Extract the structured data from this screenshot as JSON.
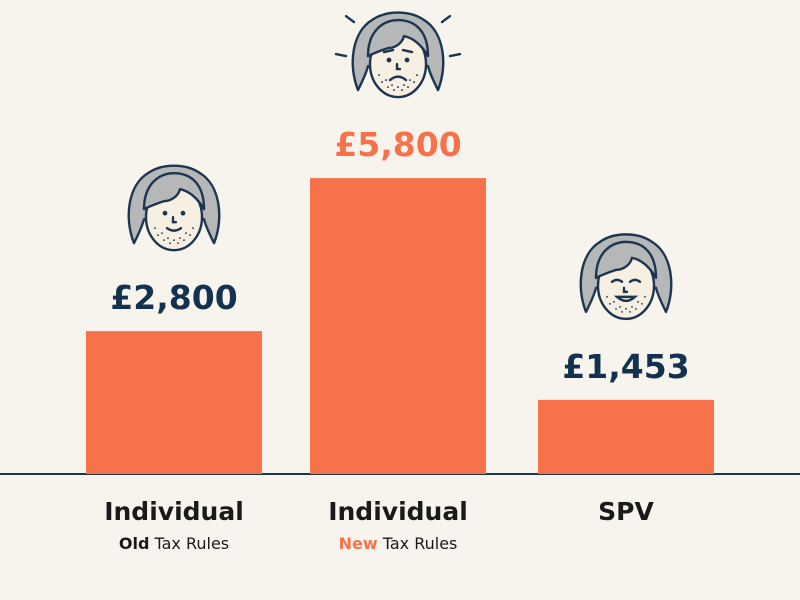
{
  "colors": {
    "background": "#f7f4ee",
    "bar": "#f7724a",
    "value_text": "#13324f",
    "highlight": "#f7724a",
    "axis": "#1d3650"
  },
  "chart_data": {
    "type": "bar",
    "categories": [
      "Individual",
      "Individual",
      "SPV"
    ],
    "values": [
      2800,
      5800,
      1453
    ],
    "value_labels": [
      "£2,800",
      "£5,800",
      "£1,453"
    ],
    "highlight_index": 1,
    "subtitles": [
      {
        "strong": "Old",
        "rest": " Tax Rules"
      },
      {
        "strong": "New",
        "rest": " Tax Rules"
      },
      {
        "strong": "",
        "rest": ""
      }
    ],
    "faces": [
      "smile-face-icon",
      "worried-face-icon",
      "laughing-face-icon"
    ],
    "ylim": [
      0,
      7350
    ],
    "grid": false,
    "title": "",
    "xlabel": "",
    "ylabel": ""
  }
}
